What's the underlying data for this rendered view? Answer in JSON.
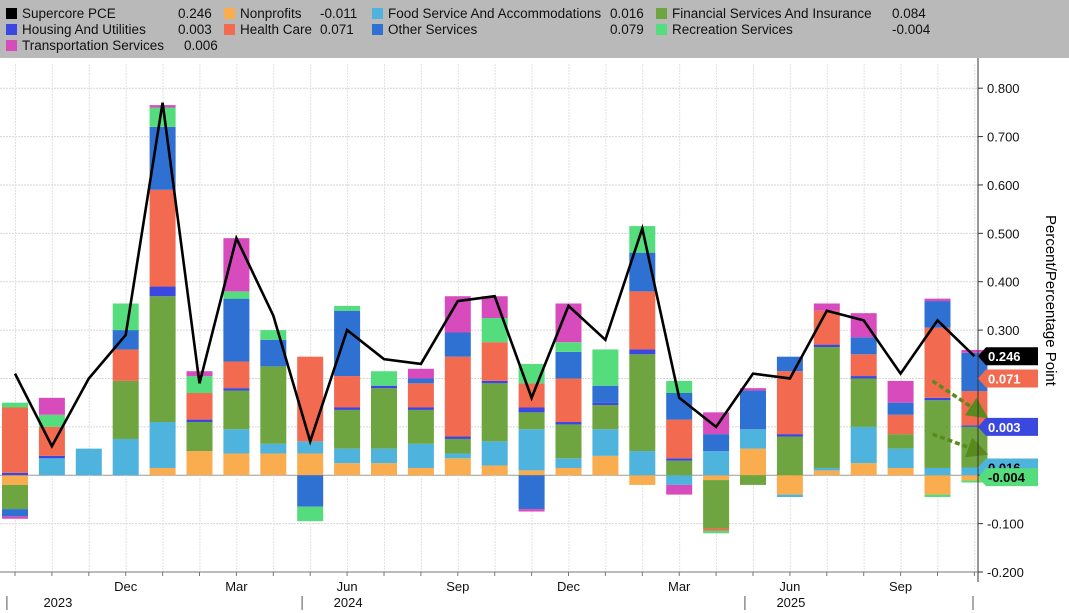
{
  "chart_data": {
    "type": "bar",
    "stacked": true,
    "ylabel": "Percent/Percentage Point",
    "ylim": [
      -0.2,
      0.85
    ],
    "yticks": [
      -0.2,
      -0.1,
      0,
      0.1,
      0.2,
      0.3,
      0.4,
      0.5,
      0.6,
      0.7,
      0.8
    ],
    "ytick_labels": [
      "-0.200",
      "-0.100",
      "",
      "0.100",
      "0.200",
      "0.300",
      "0.400",
      "0.500",
      "0.600",
      "0.700",
      "0.800"
    ],
    "grid": true,
    "legend_position": "top",
    "x_labels": [
      {
        "label": "2023",
        "index": 1
      },
      {
        "label": "Dec",
        "index": 3
      },
      {
        "label": "Mar",
        "index": 6
      },
      {
        "label": "Jun",
        "index": 9
      },
      {
        "label": "2024",
        "index": 9
      },
      {
        "label": "Sep",
        "index": 12
      },
      {
        "label": "Dec",
        "index": 15
      },
      {
        "label": "Mar",
        "index": 18
      },
      {
        "label": "Jun",
        "index": 21
      },
      {
        "label": "2025",
        "index": 21
      },
      {
        "label": "Sep",
        "index": 24
      }
    ],
    "series": [
      {
        "name": "Supercore PCE",
        "latest": "0.246",
        "color": "#000000",
        "kind": "line",
        "values": [
          0.21,
          0.06,
          0.2,
          0.29,
          0.77,
          0.19,
          0.49,
          0.33,
          0.07,
          0.3,
          0.24,
          0.23,
          0.36,
          0.37,
          0.16,
          0.35,
          0.28,
          0.51,
          0.16,
          0.1,
          0.21,
          0.2,
          0.34,
          0.32,
          0.21,
          0.32,
          0.246
        ]
      },
      {
        "name": "Nonprofits",
        "latest": "-0.011",
        "color": "#f9ad4e",
        "values": [
          -0.02,
          0.0,
          0.0,
          0.0,
          0.015,
          0.05,
          0.045,
          0.045,
          0.045,
          0.025,
          0.025,
          0.015,
          0.035,
          0.02,
          0.01,
          0.015,
          0.04,
          -0.02,
          0.0,
          -0.01,
          0.055,
          -0.04,
          0.01,
          0.025,
          0.015,
          -0.04,
          -0.011
        ]
      },
      {
        "name": "Food Service And Accommodations",
        "latest": "0.016",
        "color": "#4fb4dd",
        "values": [
          0.0,
          0.035,
          0.055,
          0.075,
          0.095,
          0.0,
          0.05,
          0.02,
          0.025,
          0.03,
          0.03,
          0.05,
          0.01,
          0.05,
          0.085,
          0.02,
          0.055,
          0.05,
          -0.02,
          0.05,
          0.04,
          -0.005,
          0.005,
          0.075,
          0.04,
          0.015,
          0.016
        ]
      },
      {
        "name": "Financial Services And Insurance",
        "latest": "0.084",
        "color": "#6ea540",
        "values": [
          -0.05,
          0.0,
          0.0,
          0.12,
          0.26,
          0.06,
          0.08,
          0.16,
          0.0,
          0.08,
          0.125,
          0.07,
          0.03,
          0.12,
          0.035,
          0.07,
          0.05,
          0.2,
          0.03,
          -0.1,
          -0.02,
          0.08,
          0.25,
          0.1,
          0.03,
          0.14,
          0.084
        ]
      },
      {
        "name": "Housing And Utilities",
        "latest": "0.003",
        "color": "#3b48e0",
        "values": [
          0.005,
          0.005,
          0.0,
          0.0,
          0.02,
          0.005,
          0.005,
          0.0,
          0.0,
          0.005,
          0.005,
          0.005,
          0.005,
          0.005,
          0.01,
          0.005,
          0.005,
          0.01,
          0.005,
          0.0,
          0.0,
          0.005,
          0.005,
          0.005,
          0.0,
          0.005,
          0.003
        ]
      },
      {
        "name": "Health Care",
        "latest": "0.071",
        "color": "#f26a50",
        "values": [
          0.135,
          0.06,
          0.0,
          0.065,
          0.2,
          0.055,
          0.055,
          0.0,
          0.175,
          0.065,
          0.0,
          0.05,
          0.165,
          0.08,
          0.05,
          0.09,
          0.0,
          0.12,
          0.08,
          -0.005,
          0.0,
          0.13,
          0.07,
          0.045,
          0.04,
          0.145,
          0.071
        ]
      },
      {
        "name": "Other Services",
        "latest": "0.079",
        "color": "#2f70d3",
        "values": [
          -0.015,
          0.0,
          0.0,
          0.04,
          0.13,
          0.0,
          0.13,
          0.055,
          -0.065,
          0.135,
          0.0,
          0.01,
          0.05,
          0.0,
          -0.07,
          0.055,
          0.035,
          0.08,
          0.055,
          0.035,
          0.08,
          0.03,
          0.0,
          0.035,
          0.025,
          0.055,
          0.079
        ]
      },
      {
        "name": "Recreation Services",
        "latest": "-0.004",
        "color": "#55dc7c",
        "values": [
          0.01,
          0.025,
          0.0,
          0.055,
          0.04,
          0.035,
          0.015,
          0.02,
          -0.03,
          0.01,
          0.03,
          0.0,
          0.0,
          0.05,
          0.04,
          0.02,
          0.075,
          0.055,
          0.025,
          -0.005,
          0.0,
          0.0,
          0.0,
          0.0,
          0.0,
          -0.005,
          -0.004
        ]
      },
      {
        "name": "Transportation Services",
        "latest": "0.006",
        "color": "#d84bbd",
        "values": [
          -0.005,
          0.035,
          0.0,
          0.0,
          0.005,
          0.01,
          0.11,
          0.0,
          0.0,
          0.0,
          0.0,
          0.02,
          0.075,
          0.045,
          -0.005,
          0.08,
          0.0,
          0.0,
          -0.02,
          0.045,
          0.005,
          0.0,
          0.015,
          0.05,
          0.045,
          0.005,
          0.006
        ]
      }
    ],
    "right_badges": [
      {
        "label": "0.246",
        "series": "Supercore PCE",
        "y": 0.246,
        "bg": "#000000",
        "fg": "#ffffff"
      },
      {
        "label": "0.071",
        "series": "Health Care",
        "y": 0.2,
        "bg": "#f26a50",
        "fg": "#ffffff"
      },
      {
        "label": "0.003",
        "series": "Housing And Utilities",
        "y": 0.1,
        "bg": "#3b48e0",
        "fg": "#ffffff"
      },
      {
        "label": "0.016",
        "series": "Food Service And Accommodations",
        "y": 0.016,
        "bg": "#4fb4dd",
        "fg": "#000000"
      },
      {
        "label": "-0.004",
        "series": "Recreation Services",
        "y": -0.004,
        "bg": "#55dc7c",
        "fg": "#000000"
      }
    ]
  }
}
